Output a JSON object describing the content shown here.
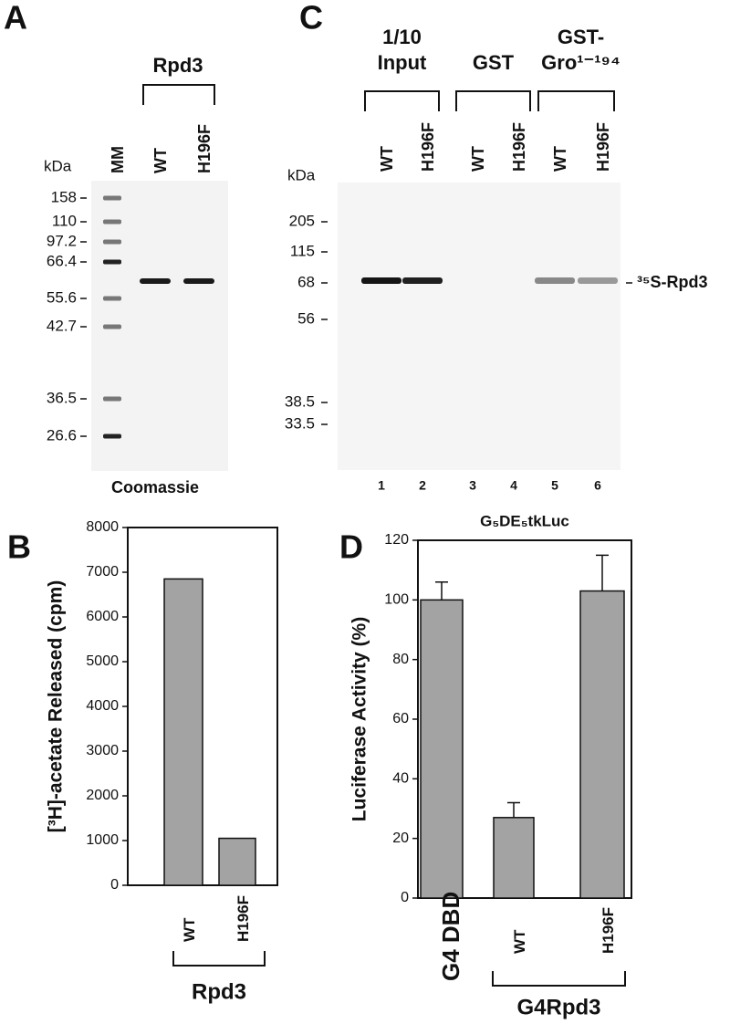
{
  "panel_a": {
    "letter": "A",
    "group_label": "Rpd3",
    "kda_label": "kDa",
    "lanes": [
      "MM",
      "WT",
      "H196F"
    ],
    "markers": [
      "158",
      "110",
      "97.2",
      "66.4",
      "55.6",
      "42.7",
      "36.5",
      "26.6"
    ],
    "caption": "Coomassie"
  },
  "panel_c": {
    "letter": "C",
    "groups": [
      {
        "lines": [
          "1/10",
          "Input"
        ]
      },
      {
        "lines": [
          "GST"
        ]
      },
      {
        "lines": [
          "GST-",
          "Gro¹⁻¹⁹⁴"
        ]
      }
    ],
    "lanes": [
      "WT",
      "H196F",
      "WT",
      "H196F",
      "WT",
      "H196F"
    ],
    "kda_label": "kDa",
    "markers": [
      "205",
      "115",
      "68",
      "56",
      "38.5",
      "33.5"
    ],
    "band_label": "³⁵S-Rpd3",
    "lane_numbers": [
      "1",
      "2",
      "3",
      "4",
      "5",
      "6"
    ]
  },
  "chart_data": [
    {
      "type": "bar",
      "letter": "B",
      "y_label": "[³H]-acetate Released (cpm)",
      "categories": [
        "WT",
        "H196F"
      ],
      "values": [
        6850,
        1050
      ],
      "color": "#a3a3a3",
      "ylim": [
        0,
        8000
      ],
      "yticks": [
        0,
        1000,
        2000,
        3000,
        4000,
        5000,
        6000,
        7000,
        8000
      ],
      "group_label": "Rpd3"
    },
    {
      "type": "bar",
      "letter": "D",
      "title": "G₅DE₅tkLuc",
      "y_label": "Luciferase Activity (%)",
      "categories": [
        "G4 DBD",
        "WT",
        "H196F"
      ],
      "values": [
        100,
        27,
        103
      ],
      "errors": [
        6,
        5,
        12
      ],
      "color": "#a3a3a3",
      "ylim": [
        0,
        120
      ],
      "yticks": [
        0,
        20,
        40,
        60,
        80,
        100,
        120
      ],
      "group_label": "G4Rpd3"
    }
  ]
}
